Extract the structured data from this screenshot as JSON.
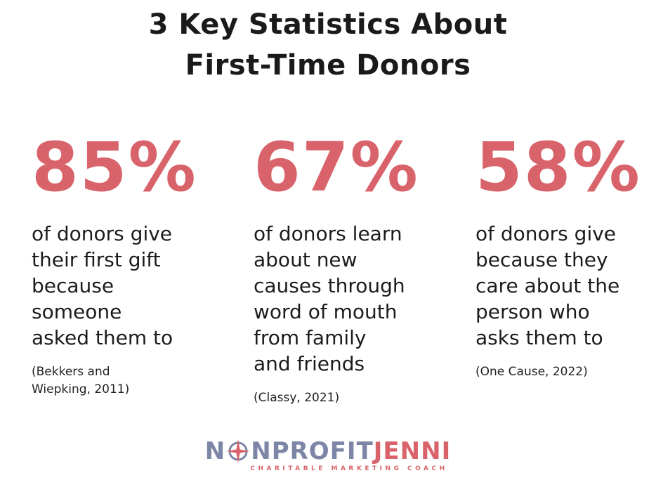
{
  "title": {
    "lines": [
      "3 Key Statistics About",
      "First-Time Donors"
    ]
  },
  "stats": [
    {
      "figure": "85%",
      "description": [
        "of donors give",
        "their first gift",
        "because",
        "someone",
        "asked them to"
      ],
      "source": [
        "(Bekkers and",
        "Wiepking, 2011)"
      ]
    },
    {
      "figure": "67%",
      "description": [
        "of donors learn",
        "about new",
        "causes through",
        "word of mouth",
        "from family",
        "and friends"
      ],
      "source": [
        "(Classy, 2021)"
      ]
    },
    {
      "figure": "58%",
      "description": [
        "of donors give",
        "because they",
        "care about the",
        "person who",
        "asks them to"
      ],
      "source": [
        "(One Cause, 2022)"
      ]
    }
  ],
  "logo": {
    "first": "N",
    "second": "NPROFIT",
    "accent": "JENNI",
    "tagline": "CHARITABLE MARKETING COACH"
  }
}
